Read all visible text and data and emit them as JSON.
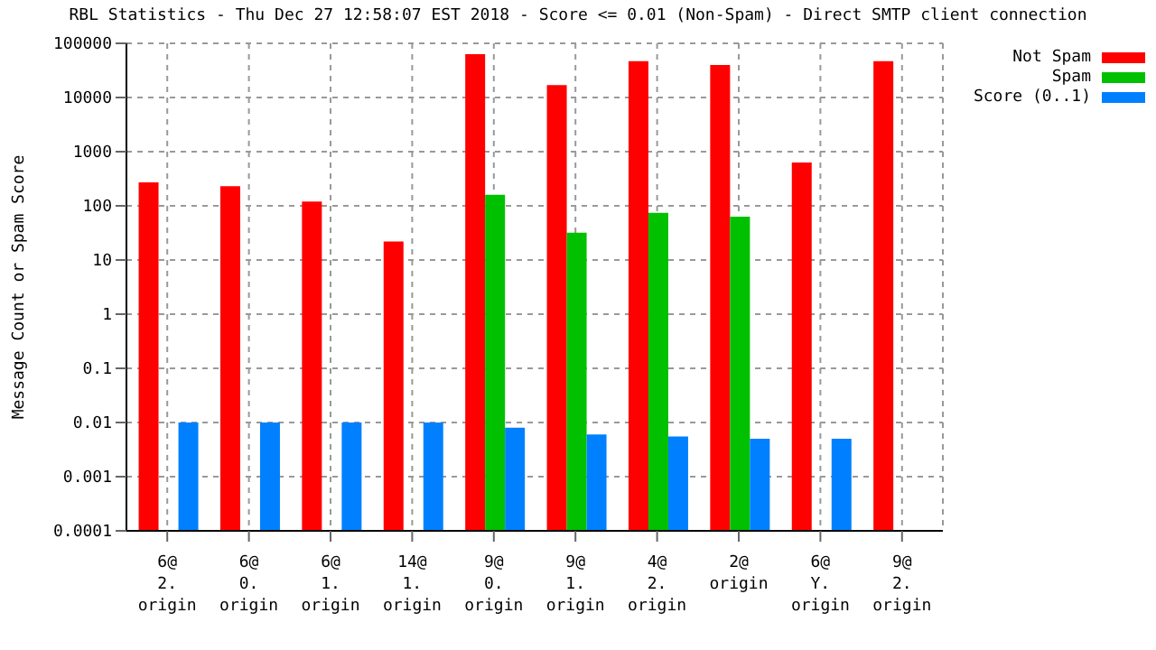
{
  "chart_data": {
    "type": "bar",
    "title": "RBL Statistics - Thu Dec 27 12:58:07 EST 2018 - Score <= 0.01 (Non-Spam) - Direct SMTP client connection",
    "ylabel": "Message Count or Spam Score",
    "categories": [
      "6@\n2.\norigin",
      "6@\n0.\norigin",
      "6@\n1.\norigin",
      "14@\n1.\norigin",
      "9@\n0.\norigin",
      "9@\n1.\norigin",
      "4@\n2.\norigin",
      "2@\norigin",
      "6@\nY.\norigin",
      "9@\n2.\norigin"
    ],
    "series": [
      {
        "name": "Not Spam",
        "color": "#ff0000",
        "values": [
          270,
          230,
          120,
          22,
          63000,
          17000,
          47000,
          40000,
          630,
          47000
        ]
      },
      {
        "name": "Spam",
        "color": "#00c000",
        "values": [
          null,
          null,
          null,
          null,
          160,
          32,
          74,
          63,
          null,
          null
        ]
      },
      {
        "name": "Score (0..1)",
        "color": "#0080ff",
        "values": [
          0.01,
          0.01,
          0.01,
          0.01,
          0.008,
          0.006,
          0.0055,
          0.005,
          0.005,
          null
        ]
      }
    ],
    "log": "y",
    "ylim": [
      0.0001,
      100000
    ],
    "yticks": [
      0.0001,
      0.001,
      0.01,
      0.1,
      1,
      10,
      100,
      1000,
      10000,
      100000
    ],
    "grid": true,
    "legend": "top right"
  }
}
